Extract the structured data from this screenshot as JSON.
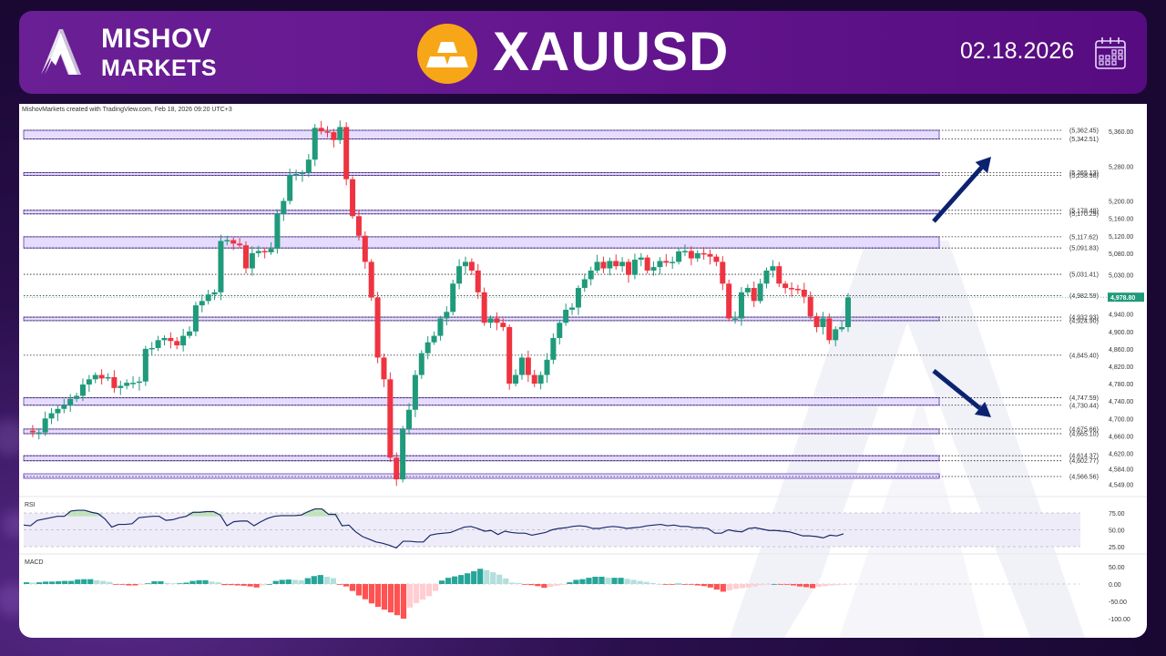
{
  "header": {
    "brand_line1": "MISHOV",
    "brand_line2": "MARKETS",
    "symbol": "XAUUSD",
    "date": "02.18.2026",
    "icons": {
      "logo": "mountain-m-logo",
      "asset": "gold-bars-icon",
      "calendar": "calendar-icon"
    }
  },
  "chart": {
    "attribution": "MishovMarkets created with TradingView.com, Feb 18, 2026 09:20 UTC+3",
    "current_price": "4,978.80",
    "rsi_label": "RSI",
    "macd_label": "MACD"
  },
  "colors": {
    "bull": "#1f9a7a",
    "bear": "#ef3340",
    "zone_fill": "#e6dcff",
    "zone_border": "#7b5cc9",
    "arrow": "#0b2270",
    "rsi_line": "#1a2a6b",
    "price_tag": "#1f9a7a"
  },
  "chart_data": [
    {
      "type": "candlestick",
      "title": "XAUUSD",
      "_note": "Candle OHLC values are estimated from the visible price path and are not per-candle readings.",
      "price_axis_ticks": [
        "5,360.00",
        "5,280.00",
        "5,200.00",
        "5,160.00",
        "5,120.00",
        "5,080.00",
        "5,030.00",
        "4,980.00",
        "4,940.00",
        "4,900.00",
        "4,860.00",
        "4,820.00",
        "4,780.00",
        "4,740.00",
        "4,700.00",
        "4,660.00",
        "4,620.00",
        "4,584.00",
        "4,549.00"
      ],
      "ylim": [
        4549,
        5380
      ],
      "current_price": 4978.8,
      "levels": [
        {
          "label": "(5,362.45)",
          "value": 5362.45,
          "zone": true
        },
        {
          "label": "(5,342.51)",
          "value": 5342.51,
          "zone": true
        },
        {
          "label": "(5,265.13)",
          "value": 5265.13,
          "zone": true
        },
        {
          "label": "(5,258.98)",
          "value": 5258.98,
          "zone": true
        },
        {
          "label": "(5,178.48)",
          "value": 5178.48,
          "zone": true
        },
        {
          "label": "(5,170.29)",
          "value": 5170.29,
          "zone": true
        },
        {
          "label": "(5,117.62)",
          "value": 5117.62,
          "zone": true
        },
        {
          "label": "(5,091.83)",
          "value": 5091.83,
          "zone": true
        },
        {
          "label": "(5,031.41)",
          "value": 5031.41,
          "zone": false
        },
        {
          "label": "(4,982.59)",
          "value": 4982.59,
          "zone": false
        },
        {
          "label": "(4,932.93)",
          "value": 4932.93,
          "zone": true
        },
        {
          "label": "(4,924.90)",
          "value": 4924.9,
          "zone": true
        },
        {
          "label": "(4,845.40)",
          "value": 4845.4,
          "zone": false
        },
        {
          "label": "(4,747.59)",
          "value": 4747.59,
          "zone": true
        },
        {
          "label": "(4,730.44)",
          "value": 4730.44,
          "zone": true
        },
        {
          "label": "(4,675.66)",
          "value": 4675.66,
          "zone": true
        },
        {
          "label": "(4,665.10)",
          "value": 4665.1,
          "zone": true
        },
        {
          "label": "(4,614.37)",
          "value": 4614.37,
          "zone": true
        },
        {
          "label": "(4,602.77)",
          "value": 4602.77,
          "zone": true
        },
        {
          "label": "(4,566.56)",
          "value": 4566.56,
          "zone": true
        }
      ],
      "annotations": [
        {
          "type": "arrow",
          "direction": "up-right",
          "from": [
            1025,
            243
          ],
          "to": [
            1088,
            172
          ]
        },
        {
          "type": "arrow",
          "direction": "down-right",
          "from": [
            1025,
            407
          ],
          "to": [
            1088,
            458
          ]
        }
      ],
      "candles_close_path": [
        4672,
        4668,
        4668,
        4700,
        4712,
        4722,
        4730,
        4745,
        4752,
        4778,
        4790,
        4800,
        4792,
        4795,
        4770,
        4775,
        4782,
        4782,
        4785,
        4860,
        4862,
        4880,
        4885,
        4878,
        4868,
        4890,
        4900,
        4960,
        4970,
        4985,
        4990,
        5108,
        5110,
        5102,
        5098,
        5045,
        5080,
        5085,
        5082,
        5090,
        5170,
        5200,
        5260,
        5262,
        5265,
        5295,
        5368,
        5360,
        5358,
        5340,
        5370,
        5250,
        5165,
        5120,
        5060,
        4978,
        4840,
        4790,
        4610,
        4560,
        4675,
        4720,
        4800,
        4850,
        4875,
        4890,
        4930,
        4945,
        5010,
        5050,
        5060,
        5040,
        4990,
        4920,
        4930,
        4920,
        4910,
        4780,
        4800,
        4840,
        4800,
        4780,
        4800,
        4835,
        4885,
        4920,
        4950,
        4955,
        5000,
        5020,
        5040,
        5060,
        5045,
        5062,
        5050,
        5060,
        5030,
        5065,
        5070,
        5040,
        5048,
        5062,
        5058,
        5060,
        5084,
        5085,
        5068,
        5080,
        5078,
        5072,
        5060,
        5010,
        4930,
        4930,
        4990,
        5000,
        4970,
        5010,
        5040,
        5050,
        5010,
        5000,
        4998,
        4996,
        4980,
        4935,
        4910,
        4930,
        4880,
        4905,
        4910,
        4978
      ]
    },
    {
      "type": "line",
      "title": "RSI",
      "_note": "RSI line and MACD histogram values are approximate shape reconstructions, not read indicator values.",
      "ylim": [
        15,
        85
      ],
      "ticks": [
        "75.00",
        "50.00",
        "25.00"
      ],
      "bands": [
        25,
        50,
        75
      ],
      "values": [
        57,
        56,
        64,
        66,
        68,
        70,
        70,
        78,
        79,
        79,
        76,
        74,
        66,
        54,
        58,
        58,
        59,
        68,
        69,
        70,
        70,
        64,
        65,
        68,
        70,
        76,
        76,
        77,
        77,
        72,
        56,
        62,
        63,
        63,
        56,
        62,
        67,
        70,
        71,
        71,
        71,
        72,
        77,
        81,
        81,
        73,
        73,
        56,
        57,
        47,
        40,
        36,
        32,
        30,
        27,
        23,
        33,
        33,
        32,
        32,
        42,
        44,
        45,
        46,
        50,
        54,
        55,
        52,
        48,
        49,
        43,
        48,
        46,
        45,
        45,
        42,
        44,
        46,
        50,
        52,
        53,
        55,
        56,
        55,
        52,
        52,
        54,
        55,
        54,
        52,
        53,
        54,
        56,
        57,
        58,
        56,
        57,
        55,
        55,
        53,
        53,
        52,
        45,
        45,
        50,
        48,
        47,
        52,
        53,
        51,
        49,
        49,
        48,
        47,
        44,
        41,
        41,
        40,
        38,
        42,
        41,
        44
      ]
    },
    {
      "type": "bar",
      "title": "MACD",
      "ylim": [
        -110,
        70
      ],
      "ticks": [
        "50.00",
        "0.00",
        "-50.00",
        "-100.00"
      ],
      "values": [
        5,
        4,
        5,
        7,
        7,
        8,
        9,
        9,
        13,
        14,
        14,
        11,
        9,
        6,
        -2,
        -2,
        -4,
        -4,
        -2,
        2,
        8,
        8,
        3,
        2,
        2,
        4,
        9,
        11,
        11,
        7,
        5,
        -3,
        -3,
        -4,
        -5,
        -7,
        -10,
        -4,
        0,
        9,
        12,
        13,
        12,
        11,
        17,
        23,
        26,
        21,
        17,
        -2,
        -7,
        -20,
        -33,
        -44,
        -56,
        -66,
        -74,
        -82,
        -90,
        -100,
        -68,
        -55,
        -45,
        -35,
        -20,
        10,
        18,
        22,
        26,
        31,
        37,
        44,
        40,
        34,
        27,
        16,
        4,
        3,
        -2,
        -3,
        -6,
        -11,
        -8,
        -5,
        -1,
        5,
        12,
        14,
        18,
        21,
        21,
        18,
        18,
        18,
        15,
        12,
        9,
        6,
        3,
        0,
        -1,
        -1,
        1,
        -1,
        -2,
        -4,
        -6,
        -10,
        -16,
        -22,
        -18,
        -14,
        -12,
        -10,
        -7,
        -3,
        -1,
        0,
        -1,
        -2,
        -4,
        -7,
        -9,
        -12,
        -8,
        -6,
        -4,
        -3,
        -2
      ]
    }
  ]
}
